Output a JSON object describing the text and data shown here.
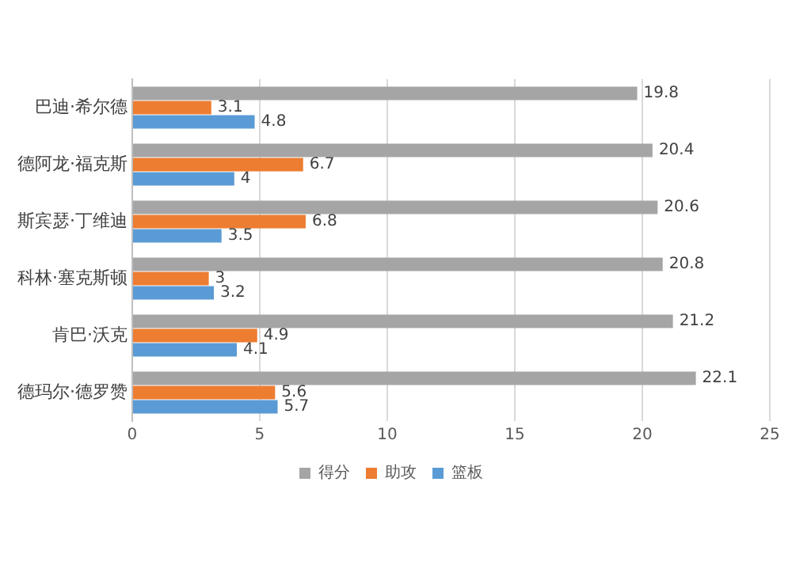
{
  "chart_data": {
    "type": "bar",
    "orientation": "horizontal",
    "categories": [
      "巴迪·希尔德",
      "德阿龙·福克斯",
      "斯宾瑟·丁维迪",
      "科林·塞克斯顿",
      "肯巴·沃克",
      "德玛尔·德罗赞"
    ],
    "series": [
      {
        "name": "得分",
        "color": "#a5a5a5",
        "values": [
          19.8,
          20.4,
          20.6,
          20.8,
          21.2,
          22.1
        ]
      },
      {
        "name": "助攻",
        "color": "#ed7d31",
        "values": [
          3.1,
          6.7,
          6.8,
          3,
          4.9,
          5.6
        ]
      },
      {
        "name": "篮板",
        "color": "#5b9bd5",
        "values": [
          4.8,
          4,
          3.5,
          3.2,
          4.1,
          5.7
        ]
      }
    ],
    "xlim": [
      0,
      25
    ],
    "xticks": [
      0,
      5,
      10,
      15,
      20,
      25
    ],
    "grid": "x",
    "legend": "bottom",
    "data_labels": true
  }
}
